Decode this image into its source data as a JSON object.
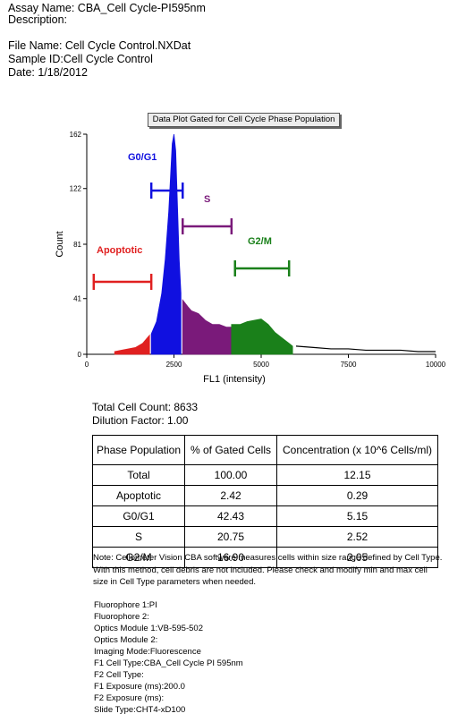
{
  "header": {
    "assay_name": "Assay Name: CBA_Cell Cycle-PI595nm",
    "description": "Description:",
    "file_name": "File Name: Cell Cycle Control.NXDat",
    "sample_id": "Sample ID:Cell Cycle Control",
    "date": "Date: 1/18/2012"
  },
  "chart_title": "Data Plot Gated for Cell Cycle Phase Population",
  "chart_data": {
    "type": "histogram",
    "xlabel": "FL1 (intensity)",
    "ylabel": "Count",
    "xlim": [
      0,
      10000
    ],
    "ylim": [
      0,
      162
    ],
    "x_ticks": [
      "0",
      "2500",
      "5000",
      "7500",
      "10000"
    ],
    "y_ticks": [
      "0",
      "41",
      "81",
      "122",
      "162"
    ],
    "gates": [
      {
        "label": "Apoptotic",
        "range": [
          200,
          1850
        ],
        "color": "#e02020"
      },
      {
        "label": "G0/G1",
        "range": [
          1850,
          2750
        ],
        "color": "#1010e0"
      },
      {
        "label": "S",
        "range": [
          2750,
          4150
        ],
        "color": "#7a1a7a"
      },
      {
        "label": "G2/M",
        "range": [
          4250,
          5800
        ],
        "color": "#1a801a"
      }
    ],
    "series": [
      {
        "segment": "Apoptotic",
        "color": "#e02020",
        "points": [
          [
            800,
            2
          ],
          [
            1000,
            3
          ],
          [
            1200,
            4
          ],
          [
            1400,
            5
          ],
          [
            1600,
            8
          ],
          [
            1800,
            14
          ]
        ]
      },
      {
        "segment": "G0/G1",
        "color": "#1010e0",
        "points": [
          [
            1850,
            15
          ],
          [
            2000,
            24
          ],
          [
            2150,
            45
          ],
          [
            2250,
            70
          ],
          [
            2350,
            105
          ],
          [
            2400,
            130
          ],
          [
            2450,
            155
          ],
          [
            2500,
            162
          ],
          [
            2550,
            150
          ],
          [
            2600,
            110
          ],
          [
            2650,
            70
          ],
          [
            2700,
            45
          ]
        ]
      },
      {
        "segment": "S",
        "color": "#7a1a7a",
        "points": [
          [
            2750,
            40
          ],
          [
            2900,
            35
          ],
          [
            3000,
            32
          ],
          [
            3200,
            30
          ],
          [
            3400,
            25
          ],
          [
            3600,
            22
          ],
          [
            3800,
            22
          ],
          [
            4000,
            20
          ],
          [
            4150,
            20
          ]
        ]
      },
      {
        "segment": "G2/M",
        "color": "#1a801a",
        "points": [
          [
            4150,
            22
          ],
          [
            4400,
            22
          ],
          [
            4600,
            24
          ],
          [
            4800,
            25
          ],
          [
            5000,
            26
          ],
          [
            5200,
            22
          ],
          [
            5400,
            16
          ],
          [
            5600,
            12
          ],
          [
            5800,
            8
          ],
          [
            5900,
            6
          ]
        ]
      },
      {
        "segment": "debris",
        "color": "#000000",
        "points": [
          [
            6000,
            6
          ],
          [
            6500,
            5
          ],
          [
            7000,
            4
          ],
          [
            7500,
            4
          ],
          [
            8000,
            3
          ],
          [
            8500,
            3
          ],
          [
            9000,
            3
          ],
          [
            9500,
            2
          ],
          [
            10000,
            2
          ]
        ]
      }
    ]
  },
  "stats": {
    "total_cell_count": "Total Cell Count: 8633",
    "dilution_factor": "Dilution Factor: 1.00"
  },
  "table": {
    "headers": [
      "Phase Population",
      "% of Gated Cells",
      "Concentration (x 10^6 Cells/ml)"
    ],
    "rows": [
      [
        "Total",
        "100.00",
        "12.15"
      ],
      [
        "Apoptotic",
        "2.42",
        "0.29"
      ],
      [
        "G0/G1",
        "42.43",
        "5.15"
      ],
      [
        "S",
        "20.75",
        "2.52"
      ],
      [
        "G2/M",
        "16.90",
        "2.05"
      ]
    ]
  },
  "note": "Note: Cellometer Vision CBA software measures cells within size range defined by Cell Type.  With this method, cell debris are not included.  Please check and modify min and max cell size in Cell Type parameters when needed.",
  "meta": [
    "Fluorophore 1:PI",
    "Fluorophore 2:",
    "Optics Module 1:VB-595-502",
    "Optics Module 2:",
    "Imaging Mode:Fluorescence",
    "F1 Cell Type:CBA_Cell Cycle PI 595nm",
    "F2 Cell Type:",
    "F1 Exposure (ms):200.0",
    "F2 Exposure (ms):",
    "Slide Type:CHT4-xD100"
  ]
}
